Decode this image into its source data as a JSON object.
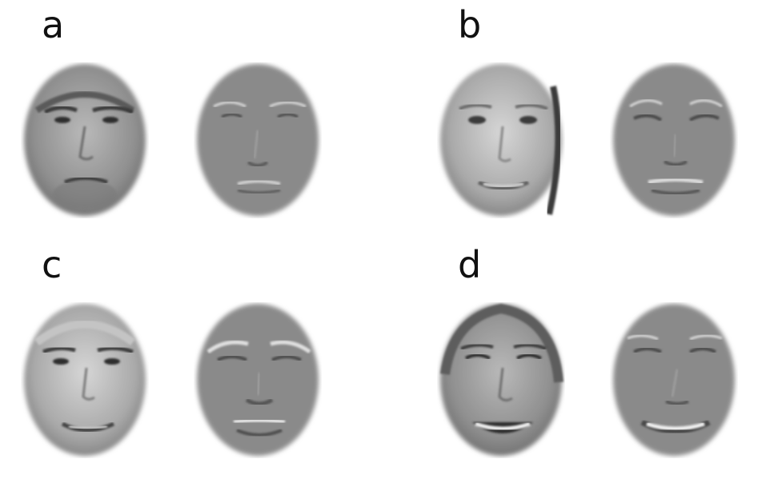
{
  "panels": [
    {
      "label": "a",
      "photo_icon": "face-photo-man-stubble",
      "map_icon": "face-difference-map"
    },
    {
      "label": "b",
      "photo_icon": "face-photo-woman-smile",
      "map_icon": "face-difference-map"
    },
    {
      "label": "c",
      "photo_icon": "face-photo-man-smile",
      "map_icon": "face-difference-map"
    },
    {
      "label": "d",
      "photo_icon": "face-photo-woman-laugh",
      "map_icon": "face-difference-map"
    }
  ],
  "colors": {
    "map_gray": "#8a8a8a",
    "photo_gray": "#a8a8a8",
    "background": "#ffffff"
  }
}
